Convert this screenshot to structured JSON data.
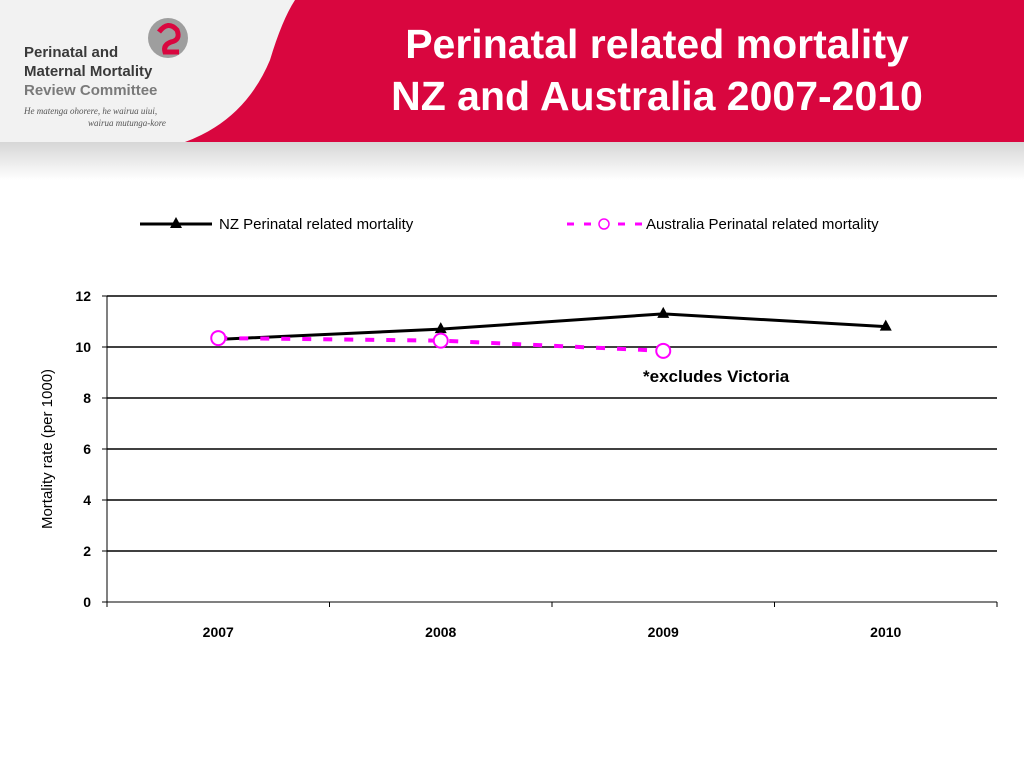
{
  "header": {
    "title_line1": "Perinatal related mortality",
    "title_line2": "NZ and Australia 2007-2010",
    "colors": {
      "band": "#d9063f",
      "logo_text": "#3a3a3a"
    },
    "logo": {
      "line1": "Perinatal and",
      "line2": "Maternal Mortality",
      "line3": "Review Committee",
      "tagline1": "He matenga ohorere, he wairua uiui,",
      "tagline2": "wairua mutunga-kore",
      "icon": "pmmrc-swirl-logo"
    }
  },
  "note": "*excludes Victoria",
  "chart_data": {
    "type": "line",
    "categories": [
      "2007",
      "2008",
      "2009",
      "2010"
    ],
    "series": [
      {
        "name": "NZ Perinatal related mortality",
        "values": [
          10.3,
          10.7,
          11.3,
          10.8
        ],
        "color": "#000000",
        "marker": "triangle",
        "style": "solid"
      },
      {
        "name": "Australia Perinatal related mortality",
        "values": [
          10.35,
          10.25,
          9.85,
          null
        ],
        "color": "#ff00ff",
        "marker": "circle",
        "style": "dashed"
      }
    ],
    "ylabel": "Mortality rate (per 1000)",
    "ylim": [
      0,
      12
    ],
    "yticks": [
      0,
      2,
      4,
      6,
      8,
      10,
      12
    ],
    "grid": true,
    "legend": "top"
  }
}
